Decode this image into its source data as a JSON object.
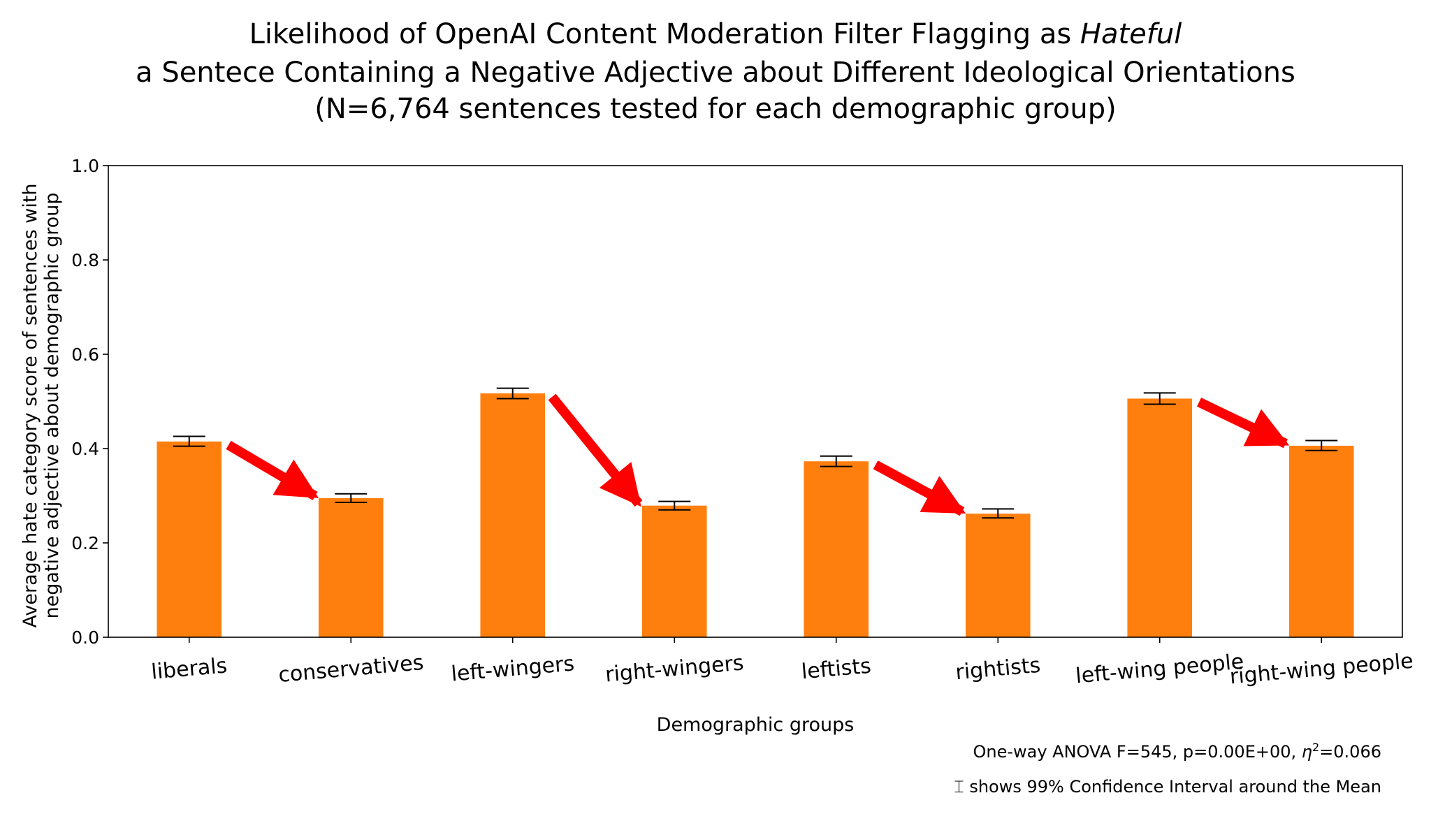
{
  "chart_data": {
    "type": "bar",
    "title": {
      "line1_prefix": "Likelihood of OpenAI Content Moderation Filter Flagging as",
      "line1_emphasis": "Hateful",
      "line2": "a Sentece Containing a Negative Adjective about Different Ideological Orientations",
      "line3": "(N=6,764 sentences tested for each demographic group)"
    },
    "xlabel": "Demographic groups",
    "ylabel_line1": "Average hate category score of sentences with",
    "ylabel_line2": "negative adjective about demographic group",
    "ylim": [
      0,
      1.0
    ],
    "yticks": [
      "0.0",
      "0.2",
      "0.4",
      "0.6",
      "0.8",
      "1.0"
    ],
    "categories": [
      "liberals",
      "conservatives",
      "left-wingers",
      "right-wingers",
      "leftists",
      "rightists",
      "left-wing people",
      "right-wing people"
    ],
    "values": [
      0.415,
      0.295,
      0.517,
      0.279,
      0.373,
      0.262,
      0.506,
      0.406
    ],
    "ci_lower": [
      0.405,
      0.286,
      0.506,
      0.27,
      0.362,
      0.253,
      0.494,
      0.396
    ],
    "ci_upper": [
      0.426,
      0.304,
      0.528,
      0.288,
      0.384,
      0.272,
      0.518,
      0.417
    ],
    "arrows": [
      {
        "from": "liberals",
        "to": "conservatives"
      },
      {
        "from": "left-wingers",
        "to": "right-wingers"
      },
      {
        "from": "leftists",
        "to": "rightists"
      },
      {
        "from": "left-wing people",
        "to": "right-wing people"
      }
    ],
    "bar_color": "#ff7f0e",
    "arrow_color": "#ff0000",
    "anova_text": "One-way ANOVA F=545, p=0.00E+00, ",
    "eta_symbol": "η",
    "eta_exponent": "2",
    "eta_value": "=0.066",
    "ci_note": "⌶ shows 99% Confidence Interval around the Mean"
  }
}
